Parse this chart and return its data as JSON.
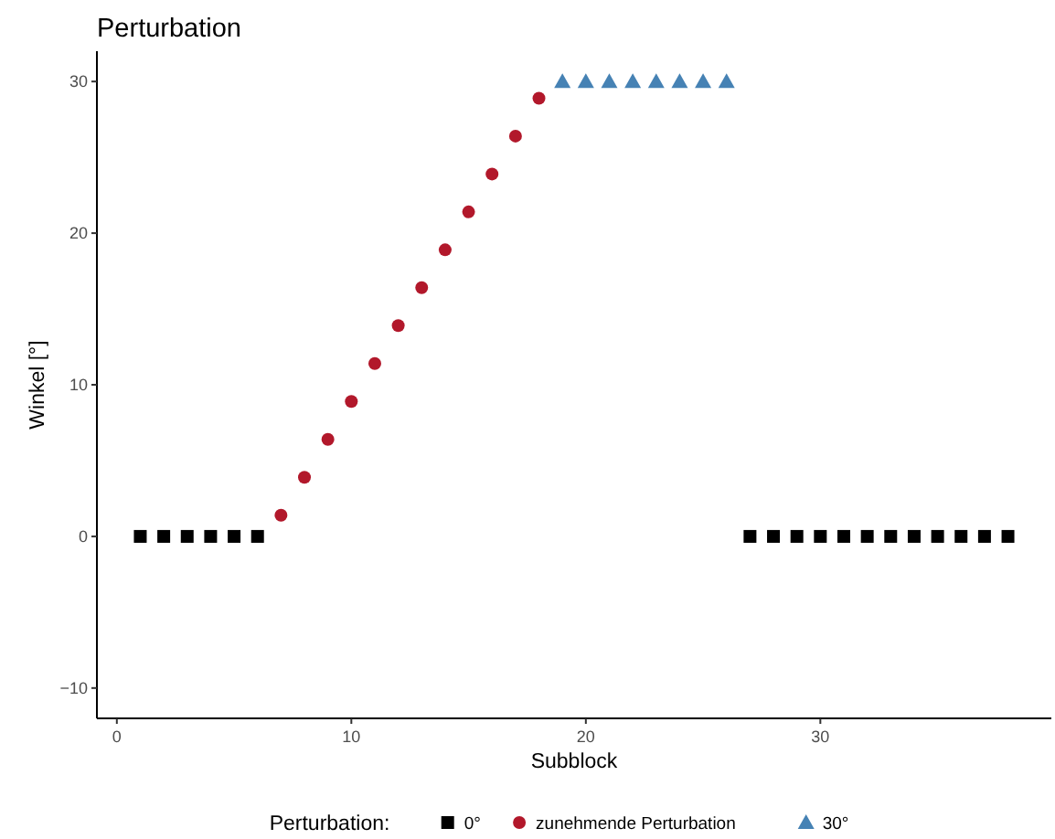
{
  "chart_data": {
    "type": "scatter",
    "title": "Perturbation",
    "xlabel": "Subblock",
    "ylabel": "Winkel [°]",
    "legend_title": "Perturbation:",
    "legend": "bottom",
    "grid": false,
    "xlim": [
      -0.85,
      39.85
    ],
    "xticks": [
      0,
      10,
      20,
      30
    ],
    "ylim": [
      -12,
      32
    ],
    "yticks": [
      -10,
      0,
      10,
      20,
      30
    ],
    "series": [
      {
        "name": "0°",
        "color": "#000000",
        "marker": "square",
        "x": [
          1,
          2,
          3,
          4,
          5,
          6,
          27,
          28,
          29,
          30,
          31,
          32,
          33,
          34,
          35,
          36,
          37,
          38
        ],
        "values": [
          0,
          0,
          0,
          0,
          0,
          0,
          0,
          0,
          0,
          0,
          0,
          0,
          0,
          0,
          0,
          0,
          0,
          0
        ]
      },
      {
        "name": "zunehmende Perturbation",
        "color": "#b2182b",
        "marker": "circle",
        "x": [
          7,
          8,
          9,
          10,
          11,
          12,
          13,
          14,
          15,
          16,
          17,
          18
        ],
        "values": [
          1.4,
          3.9,
          6.4,
          8.9,
          11.4,
          13.9,
          16.4,
          18.9,
          21.4,
          23.9,
          26.4,
          28.9
        ]
      },
      {
        "name": "30°",
        "color": "#4682b4",
        "marker": "triangle",
        "x": [
          19,
          20,
          21,
          22,
          23,
          24,
          25,
          26
        ],
        "values": [
          30,
          30,
          30,
          30,
          30,
          30,
          30,
          30
        ]
      }
    ]
  }
}
